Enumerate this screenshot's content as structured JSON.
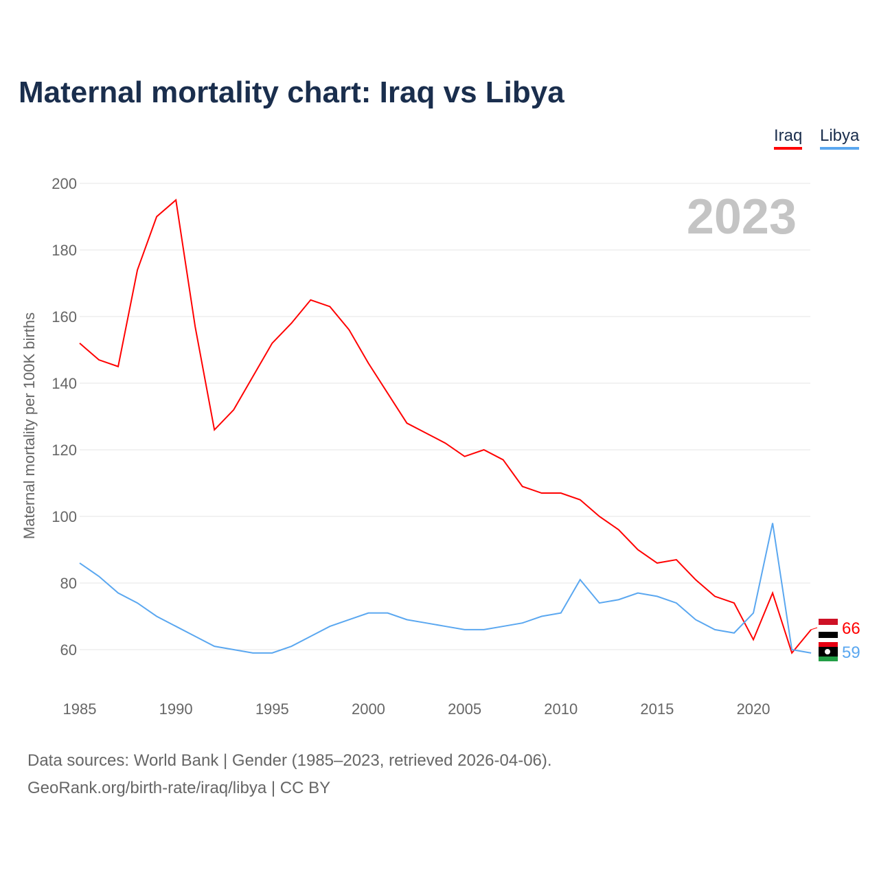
{
  "title": "Maternal mortality chart: Iraq vs Libya",
  "year_badge": "2023",
  "source_line1": "Data sources: World Bank | Gender (1985–2023, retrieved 2026-04-06).",
  "source_line2": "GeoRank.org/birth-rate/iraq/libya | CC BY",
  "chart_data": {
    "type": "line",
    "title": "Maternal mortality chart: Iraq vs Libya",
    "ylabel": "Maternal mortality per 100K births",
    "xlabel": "",
    "ylim": [
      50,
      200
    ],
    "xlim": [
      1985,
      2023
    ],
    "yticks": [
      60,
      80,
      100,
      120,
      140,
      160,
      180,
      200
    ],
    "xticks": [
      1985,
      1990,
      1995,
      2000,
      2005,
      2010,
      2015,
      2020
    ],
    "grid": true,
    "legend_placement": "top-right",
    "x": [
      1985,
      1986,
      1987,
      1988,
      1989,
      1990,
      1991,
      1992,
      1993,
      1994,
      1995,
      1996,
      1997,
      1998,
      1999,
      2000,
      2001,
      2002,
      2003,
      2004,
      2005,
      2006,
      2007,
      2008,
      2009,
      2010,
      2011,
      2012,
      2013,
      2014,
      2015,
      2016,
      2017,
      2018,
      2019,
      2020,
      2021,
      2022,
      2023
    ],
    "series": [
      {
        "name": "Iraq",
        "color": "#ff0000",
        "end_label": "66",
        "values": [
          152,
          147,
          145,
          174,
          190,
          195,
          157,
          126,
          132,
          142,
          152,
          158,
          165,
          163,
          156,
          146,
          137,
          128,
          125,
          122,
          118,
          120,
          117,
          109,
          107,
          107,
          105,
          100,
          96,
          90,
          86,
          87,
          81,
          76,
          74,
          63,
          77,
          59,
          66
        ]
      },
      {
        "name": "Libya",
        "color": "#5aa7f0",
        "end_label": "59",
        "values": [
          86,
          82,
          77,
          74,
          70,
          67,
          64,
          61,
          60,
          59,
          59,
          61,
          64,
          67,
          69,
          71,
          71,
          69,
          68,
          67,
          66,
          66,
          67,
          68,
          70,
          71,
          81,
          74,
          75,
          77,
          76,
          74,
          69,
          66,
          65,
          71,
          98,
          60,
          59
        ]
      }
    ]
  }
}
